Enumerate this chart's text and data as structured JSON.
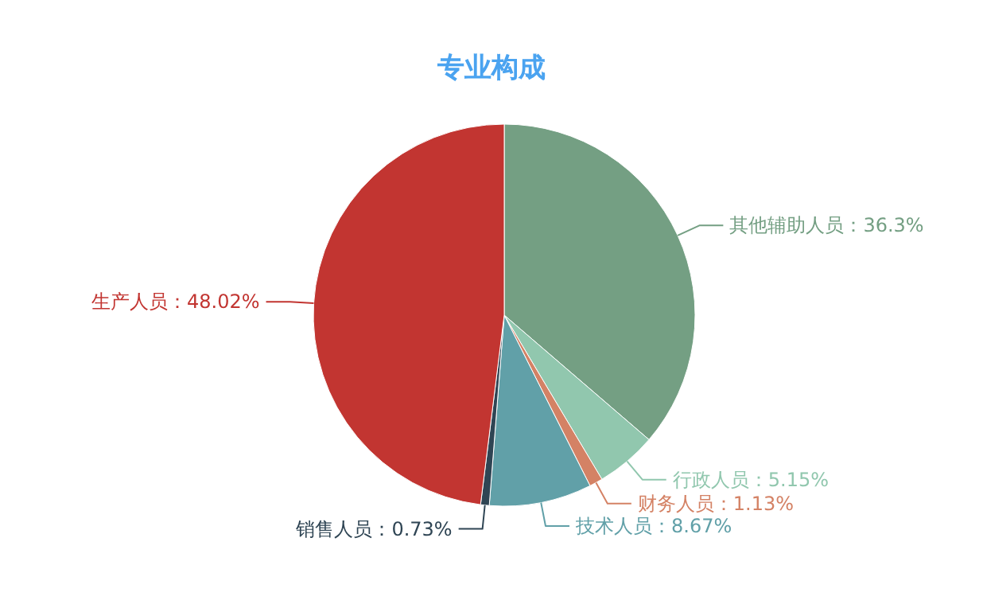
{
  "chart_data": {
    "type": "pie",
    "title": "专业构成",
    "categories": [
      "其他辅助人员",
      "行政人员",
      "财务人员",
      "技术人员",
      "销售人员",
      "生产人员"
    ],
    "values": [
      36.3,
      5.15,
      1.13,
      8.67,
      0.73,
      48.02
    ],
    "value_labels": [
      "36.3%",
      "5.15%",
      "1.13%",
      "8.67%",
      "0.73%",
      "48.02%"
    ],
    "colors": [
      "#749f83",
      "#91c7ae",
      "#d48265",
      "#61a0a8",
      "#2f4554",
      "#c23531"
    ]
  }
}
